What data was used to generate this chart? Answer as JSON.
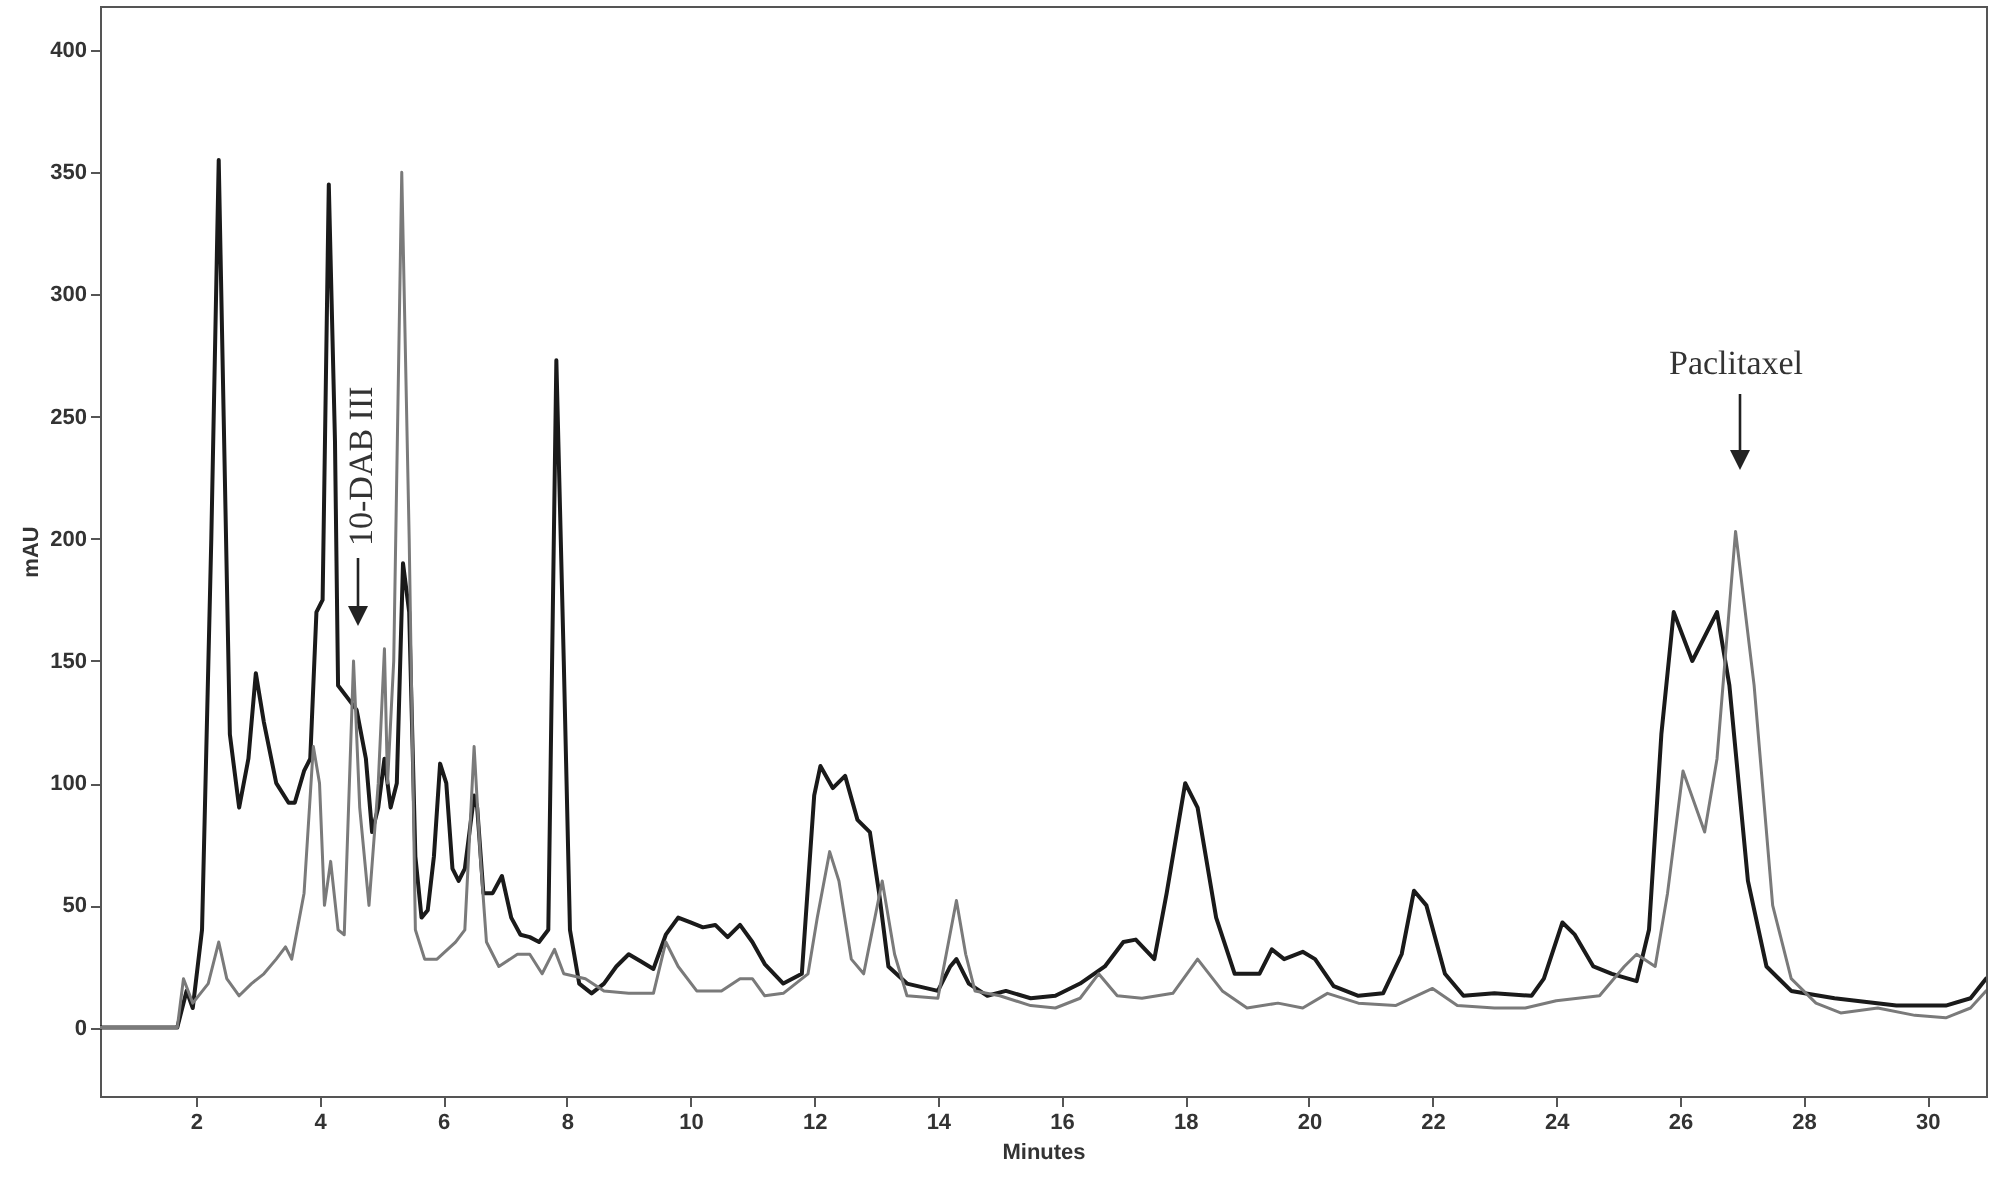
{
  "chart_data": {
    "type": "line",
    "xlabel": "Minutes",
    "ylabel": "mAU",
    "xlim": [
      0.45,
      30.95
    ],
    "ylim": [
      -28,
      418
    ],
    "xticks": [
      2,
      4,
      6,
      8,
      10,
      12,
      14,
      16,
      18,
      20,
      22,
      24,
      26,
      28,
      30
    ],
    "yticks": [
      0,
      50,
      100,
      150,
      200,
      250,
      300,
      350,
      400
    ],
    "grid": false,
    "marker": "none",
    "line_style": "solid",
    "annotations": [
      "10-DAB III",
      "Paclitaxel"
    ],
    "series": [
      {
        "color": "#1a1a1a",
        "x": [
          0.45,
          1.7,
          1.85,
          1.95,
          2.1,
          2.25,
          2.37,
          2.45,
          2.55,
          2.7,
          2.85,
          2.97,
          3.1,
          3.3,
          3.5,
          3.6,
          3.75,
          3.85,
          3.95,
          4.05,
          4.15,
          4.25,
          4.3,
          4.45,
          4.6,
          4.75,
          4.85,
          4.95,
          5.05,
          5.15,
          5.25,
          5.35,
          5.45,
          5.55,
          5.65,
          5.75,
          5.85,
          5.95,
          6.05,
          6.15,
          6.25,
          6.35,
          6.5,
          6.55,
          6.65,
          6.8,
          6.95,
          7.1,
          7.25,
          7.4,
          7.55,
          7.7,
          7.83,
          7.95,
          8.05,
          8.2,
          8.4,
          8.6,
          8.8,
          9.0,
          9.2,
          9.4,
          9.6,
          9.8,
          10.0,
          10.2,
          10.4,
          10.6,
          10.8,
          11.0,
          11.2,
          11.5,
          11.8,
          12.0,
          12.1,
          12.3,
          12.5,
          12.7,
          12.9,
          13.05,
          13.2,
          13.5,
          14.0,
          14.2,
          14.3,
          14.5,
          14.8,
          15.1,
          15.5,
          15.9,
          16.3,
          16.7,
          17.0,
          17.2,
          17.5,
          17.7,
          18.0,
          18.2,
          18.5,
          18.8,
          19.2,
          19.4,
          19.6,
          19.9,
          20.1,
          20.4,
          20.8,
          21.2,
          21.5,
          21.7,
          21.9,
          22.2,
          22.5,
          23.0,
          23.6,
          23.8,
          24.1,
          24.3,
          24.6,
          24.9,
          25.3,
          25.5,
          25.7,
          25.9,
          26.2,
          26.6,
          26.8,
          27.1,
          27.4,
          27.8,
          28.5,
          29.5,
          30.3,
          30.7,
          30.95
        ],
        "values": [
          0,
          0,
          15,
          8,
          40,
          200,
          355,
          250,
          120,
          90,
          110,
          145,
          125,
          100,
          92,
          92,
          105,
          110,
          170,
          175,
          345,
          240,
          140,
          135,
          130,
          110,
          80,
          90,
          110,
          90,
          100,
          190,
          170,
          70,
          45,
          48,
          70,
          108,
          100,
          65,
          60,
          65,
          95,
          90,
          55,
          55,
          62,
          45,
          38,
          37,
          35,
          40,
          273,
          150,
          40,
          18,
          14,
          18,
          25,
          30,
          27,
          24,
          38,
          45,
          43,
          41,
          42,
          37,
          42,
          35,
          26,
          18,
          22,
          95,
          107,
          98,
          103,
          85,
          80,
          55,
          25,
          18,
          15,
          25,
          28,
          18,
          13,
          15,
          12,
          13,
          18,
          25,
          35,
          36,
          28,
          55,
          100,
          90,
          45,
          22,
          22,
          32,
          28,
          31,
          28,
          17,
          13,
          14,
          30,
          56,
          50,
          22,
          13,
          14,
          13,
          20,
          43,
          38,
          25,
          22,
          19,
          40,
          120,
          170,
          150,
          170,
          140,
          60,
          25,
          15,
          12,
          9,
          9,
          12,
          20
        ]
      },
      {
        "color": "#7a7a7a",
        "x": [
          0.45,
          1.7,
          1.8,
          1.95,
          2.2,
          2.37,
          2.5,
          2.7,
          2.9,
          3.1,
          3.3,
          3.45,
          3.55,
          3.75,
          3.9,
          4.0,
          4.08,
          4.18,
          4.3,
          4.4,
          4.55,
          4.65,
          4.8,
          4.95,
          5.05,
          5.1,
          5.2,
          5.33,
          5.45,
          5.55,
          5.7,
          5.9,
          6.2,
          6.35,
          6.5,
          6.6,
          6.7,
          6.9,
          7.2,
          7.4,
          7.6,
          7.8,
          7.95,
          8.3,
          8.6,
          9.0,
          9.4,
          9.6,
          9.8,
          10.1,
          10.5,
          10.8,
          11.0,
          11.2,
          11.5,
          11.9,
          12.05,
          12.25,
          12.4,
          12.6,
          12.8,
          13.1,
          13.3,
          13.5,
          14.0,
          14.3,
          14.45,
          14.6,
          15.0,
          15.5,
          15.9,
          16.3,
          16.6,
          16.9,
          17.3,
          17.8,
          18.2,
          18.6,
          19.0,
          19.5,
          19.9,
          20.3,
          20.8,
          21.4,
          22.0,
          22.4,
          23.0,
          23.5,
          24.0,
          24.7,
          25.1,
          25.3,
          25.6,
          25.8,
          26.05,
          26.4,
          26.6,
          26.9,
          27.2,
          27.5,
          27.8,
          28.2,
          28.6,
          29.2,
          29.8,
          30.3,
          30.7,
          30.95
        ],
        "values": [
          0,
          0,
          20,
          10,
          18,
          35,
          20,
          13,
          18,
          22,
          28,
          33,
          28,
          55,
          115,
          100,
          50,
          68,
          40,
          38,
          150,
          90,
          50,
          100,
          155,
          100,
          150,
          350,
          200,
          40,
          28,
          28,
          35,
          40,
          115,
          70,
          35,
          25,
          30,
          30,
          22,
          32,
          22,
          20,
          15,
          14,
          14,
          35,
          25,
          15,
          15,
          20,
          20,
          13,
          14,
          22,
          45,
          72,
          60,
          28,
          22,
          60,
          30,
          13,
          12,
          52,
          30,
          15,
          13,
          9,
          8,
          12,
          22,
          13,
          12,
          14,
          28,
          15,
          8,
          10,
          8,
          14,
          10,
          9,
          16,
          9,
          8,
          8,
          11,
          13,
          25,
          30,
          25,
          55,
          105,
          80,
          110,
          203,
          140,
          50,
          20,
          10,
          6,
          8,
          5,
          4,
          8,
          15
        ]
      }
    ]
  }
}
